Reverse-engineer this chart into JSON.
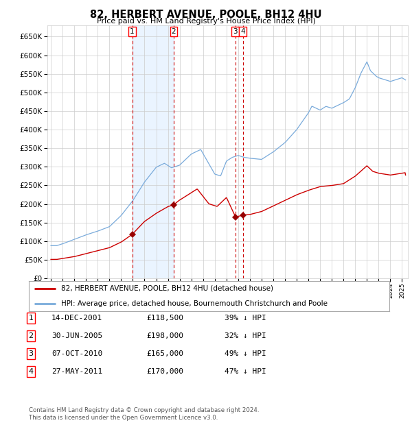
{
  "title": "82, HERBERT AVENUE, POOLE, BH12 4HU",
  "subtitle": "Price paid vs. HM Land Registry's House Price Index (HPI)",
  "legend_entry1": "82, HERBERT AVENUE, POOLE, BH12 4HU (detached house)",
  "legend_entry2": "HPI: Average price, detached house, Bournemouth Christchurch and Poole",
  "footer1": "Contains HM Land Registry data © Crown copyright and database right 2024.",
  "footer2": "This data is licensed under the Open Government Licence v3.0.",
  "hpi_color": "#7aabdb",
  "price_color": "#cc0000",
  "marker_color": "#990000",
  "bg_color": "#ffffff",
  "grid_color": "#cccccc",
  "shade_color": "#ddeeff",
  "dashed_color": "#cc0000",
  "transactions": [
    {
      "label": "1",
      "date": "2001-12-14",
      "price": 118500,
      "x": 2001.95
    },
    {
      "label": "2",
      "date": "2005-06-30",
      "price": 198000,
      "x": 2005.49
    },
    {
      "label": "3",
      "date": "2010-10-07",
      "price": 165000,
      "x": 2010.76
    },
    {
      "label": "4",
      "date": "2011-05-27",
      "price": 170000,
      "x": 2011.4
    }
  ],
  "table_rows": [
    [
      "1",
      "14-DEC-2001",
      "£118,500",
      "39% ↓ HPI"
    ],
    [
      "2",
      "30-JUN-2005",
      "£198,000",
      "32% ↓ HPI"
    ],
    [
      "3",
      "07-OCT-2010",
      "£165,000",
      "49% ↓ HPI"
    ],
    [
      "4",
      "27-MAY-2011",
      "£170,000",
      "47% ↓ HPI"
    ]
  ],
  "ylim": [
    0,
    680000
  ],
  "xlim_start": 1994.7,
  "xlim_end": 2025.5,
  "shade_start": 2001.95,
  "shade_end": 2005.49
}
